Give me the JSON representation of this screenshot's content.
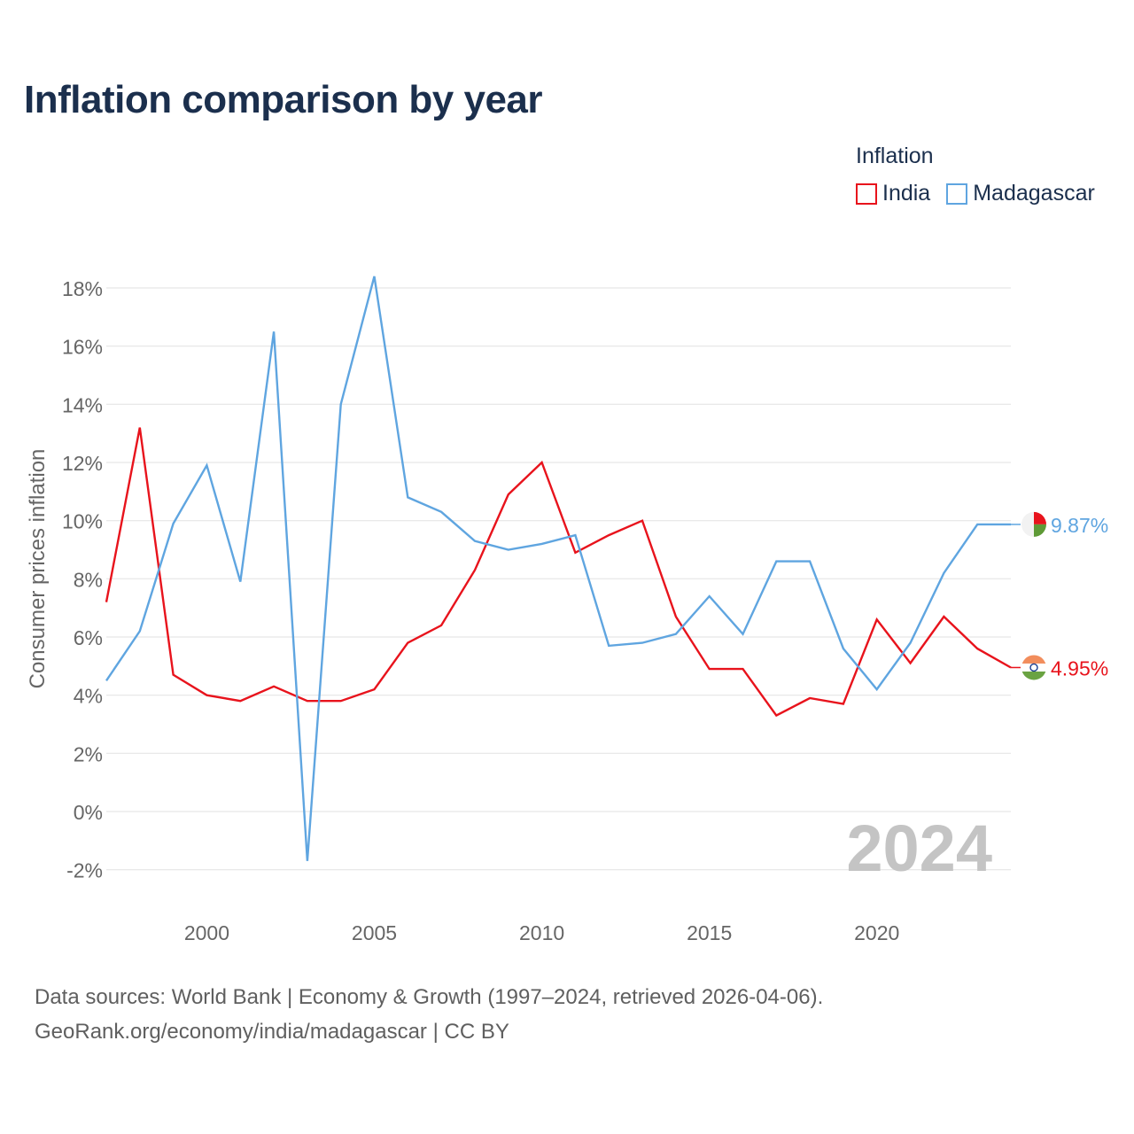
{
  "title": "Inflation comparison by year",
  "legend": {
    "title": "Inflation",
    "items": [
      {
        "name": "India",
        "color": "#e8131c"
      },
      {
        "name": "Madagascar",
        "color": "#5fa5e0"
      }
    ]
  },
  "footer": {
    "source": "Data sources: World Bank | Economy & Growth (1997–2024, retrieved 2026-04-06).",
    "attribution": "GeoRank.org/economy/india/madagascar | CC BY"
  },
  "chart_data": {
    "type": "line",
    "title": "Inflation comparison by year",
    "xlabel": "",
    "ylabel": "Consumer prices inflation",
    "x": [
      1997,
      1998,
      1999,
      2000,
      2001,
      2002,
      2003,
      2004,
      2005,
      2006,
      2007,
      2008,
      2009,
      2010,
      2011,
      2012,
      2013,
      2014,
      2015,
      2016,
      2017,
      2018,
      2019,
      2020,
      2021,
      2022,
      2023,
      2024
    ],
    "xlim": [
      1997,
      2024
    ],
    "ylim": [
      -3,
      19
    ],
    "xticks": [
      2000,
      2005,
      2010,
      2015,
      2020
    ],
    "yticks": [
      -2,
      0,
      2,
      4,
      6,
      8,
      10,
      12,
      14,
      16,
      18
    ],
    "ytick_labels": [
      "-2%",
      "0%",
      "2%",
      "4%",
      "6%",
      "8%",
      "10%",
      "12%",
      "14%",
      "16%",
      "18%"
    ],
    "xtick_labels": [
      "2000",
      "2005",
      "2010",
      "2015",
      "2020"
    ],
    "grid": true,
    "watermark": "2024",
    "series": [
      {
        "name": "India",
        "color": "#e8131c",
        "end_label": "4.95%",
        "values": [
          7.2,
          13.2,
          4.7,
          4.0,
          3.8,
          4.3,
          3.8,
          3.8,
          4.2,
          5.8,
          6.4,
          8.3,
          10.9,
          12.0,
          8.9,
          9.5,
          10.0,
          6.7,
          4.9,
          4.9,
          3.3,
          3.9,
          3.7,
          6.6,
          5.1,
          6.7,
          5.6,
          4.95
        ]
      },
      {
        "name": "Madagascar",
        "color": "#5fa5e0",
        "end_label": "9.87%",
        "values": [
          4.5,
          6.2,
          9.9,
          11.9,
          7.9,
          16.5,
          -1.7,
          14.0,
          18.4,
          10.8,
          10.3,
          9.3,
          9.0,
          9.2,
          9.5,
          5.7,
          5.8,
          6.1,
          7.4,
          6.1,
          8.6,
          8.6,
          5.6,
          4.2,
          5.8,
          8.2,
          9.87,
          9.87
        ]
      }
    ]
  }
}
